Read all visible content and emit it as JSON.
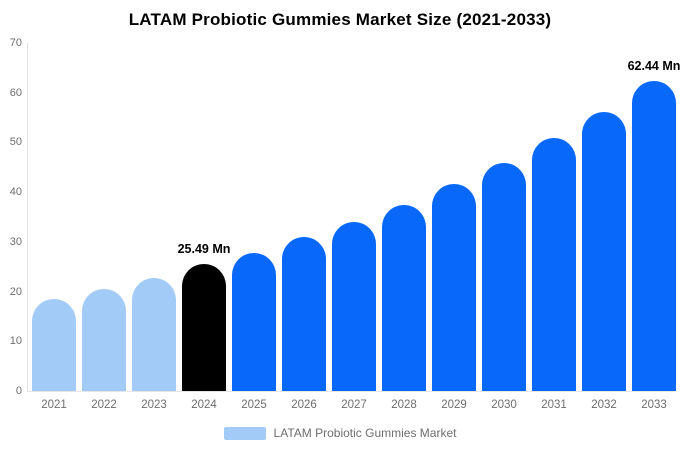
{
  "title": "LATAM Probiotic Gummies Market Size (2021-2033)",
  "legend": {
    "label": "LATAM Probiotic Gummies Market",
    "swatch_color": "#a3cbf8"
  },
  "colors": {
    "light_blue": "#a3cbf8",
    "primary_blue": "#0768fa",
    "highlight_black": "#000000",
    "axis_line": "#e0e0e0",
    "tick_text": "#6e6e6e",
    "title_text": "#000000",
    "background": "#ffffff"
  },
  "chart_data": {
    "type": "bar",
    "title": "LATAM Probiotic Gummies Market Size (2021-2033)",
    "categories": [
      "2021",
      "2022",
      "2023",
      "2024",
      "2025",
      "2026",
      "2027",
      "2028",
      "2029",
      "2030",
      "2031",
      "2032",
      "2033"
    ],
    "values": [
      18.5,
      20.6,
      22.8,
      25.49,
      27.8,
      30.9,
      34.0,
      37.5,
      41.7,
      45.9,
      50.9,
      56.2,
      62.44
    ],
    "bar_colors": [
      "#a3cbf8",
      "#a3cbf8",
      "#a3cbf8",
      "#000000",
      "#0768fa",
      "#0768fa",
      "#0768fa",
      "#0768fa",
      "#0768fa",
      "#0768fa",
      "#0768fa",
      "#0768fa",
      "#0768fa"
    ],
    "xlabel": "",
    "ylabel": "",
    "ylim": [
      0,
      70
    ],
    "yticks": [
      0,
      10,
      20,
      30,
      40,
      50,
      60,
      70
    ],
    "grid": false,
    "legend_position": "bottom",
    "legend_entries": [
      "LATAM Probiotic Gummies Market"
    ],
    "annotations": [
      {
        "category": "2024",
        "label": "25.49 Mn"
      },
      {
        "category": "2033",
        "label": "62.44 Mn"
      }
    ]
  }
}
